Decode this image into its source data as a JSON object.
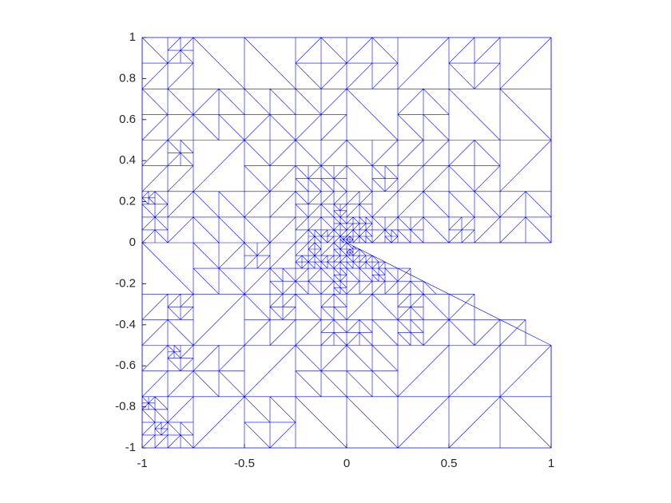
{
  "chart_data": {
    "type": "mesh",
    "color": "#0000ff",
    "domain": [
      [
        -1,
        -1
      ],
      [
        1,
        -1
      ],
      [
        1,
        -0.5
      ],
      [
        0,
        0
      ],
      [
        1,
        0
      ],
      [
        1,
        1
      ],
      [
        -1,
        1
      ]
    ],
    "xlim": [
      -1,
      1
    ],
    "ylim": [
      -1,
      1
    ],
    "xticks": [
      -1,
      -0.5,
      0,
      0.5,
      1
    ],
    "yticks": [
      -1,
      -0.8,
      -0.6,
      -0.4,
      -0.2,
      0,
      0.2,
      0.4,
      0.6,
      0.8,
      1
    ]
  }
}
